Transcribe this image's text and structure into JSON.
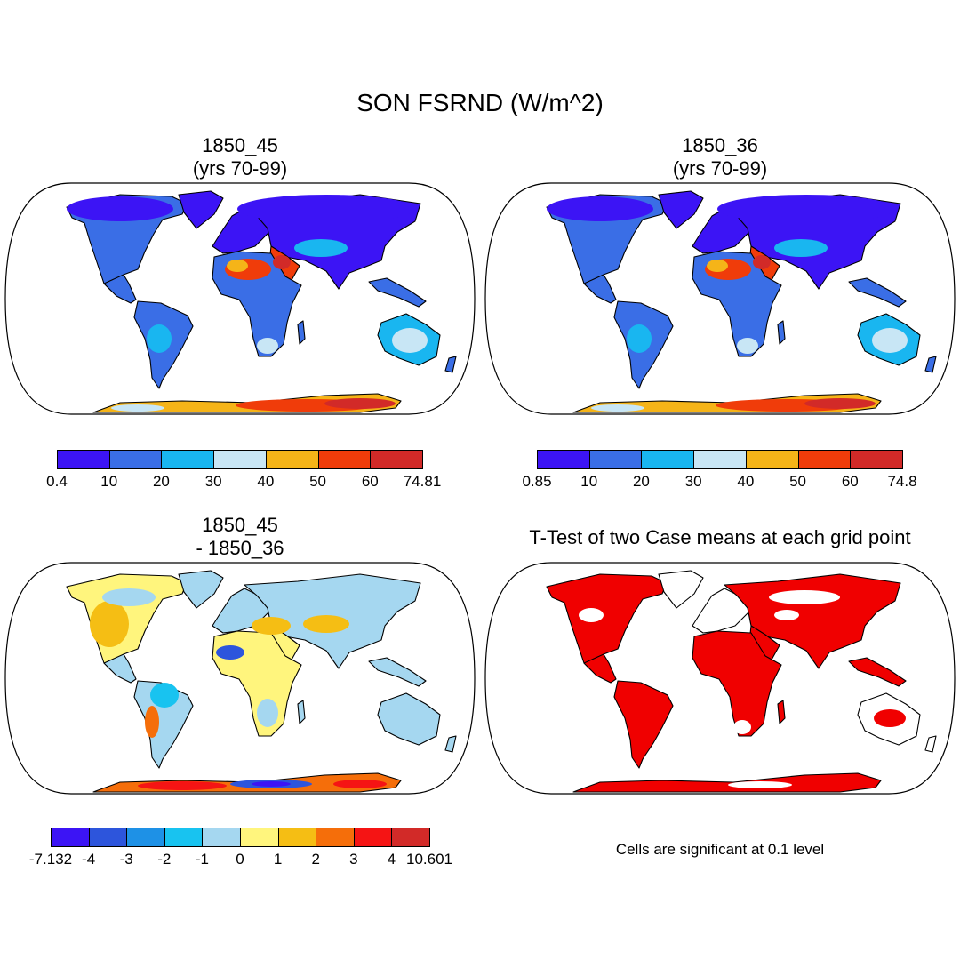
{
  "title": "SON FSRND (W/m^2)",
  "palettes": {
    "main": [
      "#3c14f5",
      "#3a6ee6",
      "#19b6f0",
      "#c8e6f5",
      "#f5b418",
      "#f03c0a",
      "#d22a28"
    ],
    "diff": [
      "#3c14f5",
      "#2d55dc",
      "#1e91e6",
      "#18c3f0",
      "#a5d7f0",
      "#fff57d",
      "#f5be14",
      "#f56e0a",
      "#f51414",
      "#d22a28"
    ],
    "sig": "#f00000"
  },
  "panels": [
    {
      "id": "panel-1850-45",
      "title_line1": "1850_45",
      "title_line2": "(yrs 70-99)",
      "colorbar_labels": [
        "0.4",
        "10",
        "20",
        "30",
        "40",
        "50",
        "60",
        "74.81"
      ]
    },
    {
      "id": "panel-1850-36",
      "title_line1": "1850_36",
      "title_line2": "(yrs 70-99)",
      "colorbar_labels": [
        "0.85",
        "10",
        "20",
        "30",
        "40",
        "50",
        "60",
        "74.8"
      ]
    },
    {
      "id": "panel-difference",
      "title_line1": "1850_45",
      "title_line2": "- 1850_36",
      "colorbar_labels": [
        "-7.132",
        "-4",
        "-3",
        "-2",
        "-1",
        "0",
        "1",
        "2",
        "3",
        "4",
        "10.601"
      ]
    },
    {
      "id": "panel-ttest",
      "title_line1": "T-Test of two Case means at each grid point",
      "note": "Cells are significant at 0.1 level"
    }
  ]
}
